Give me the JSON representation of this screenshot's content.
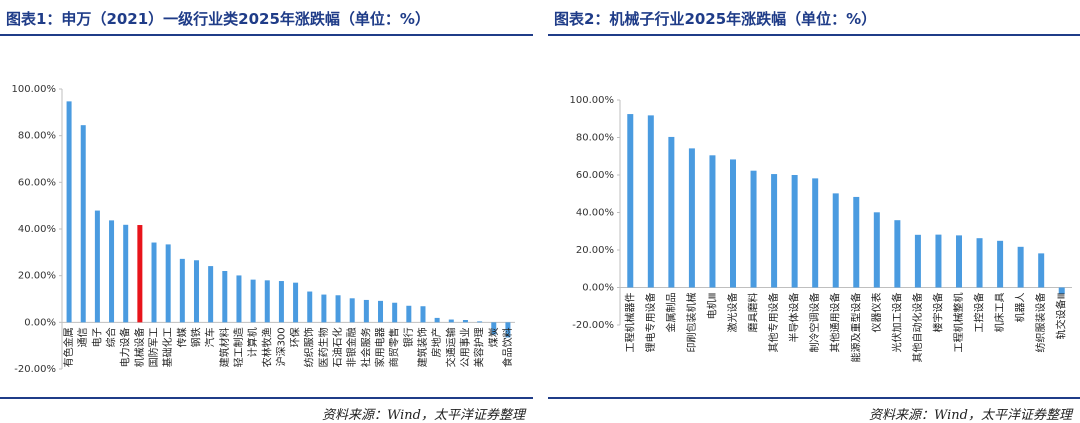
{
  "left": {
    "title": "图表1：申万（2021）一级行业类2025年涨跌幅（单位：%）",
    "source": "资料来源：Wind，太平洋证券整理"
  },
  "right": {
    "title": "图表2：机械子行业2025年涨跌幅（单位：%）",
    "source": "资料来源：Wind，太平洋证券整理"
  },
  "colors": {
    "bar": "#4a9be0",
    "highlight": "#e8141b",
    "axis": "#bfbfbf",
    "title": "#1f3c88"
  },
  "chart_data": [
    {
      "type": "bar",
      "title": "申万（2021）一级行业类2025年涨跌幅（单位：%）",
      "ylim": [
        -20,
        100
      ],
      "yticks": [
        "-20.00%",
        "0.00%",
        "20.00%",
        "40.00%",
        "60.00%",
        "80.00%",
        "100.00%"
      ],
      "highlight": "机械设备",
      "categories": [
        "有色金属",
        "通信",
        "电子",
        "综合",
        "电力设备",
        "机械设备",
        "国防军工",
        "基础化工",
        "传媒",
        "钢铁",
        "汽车",
        "建筑材料",
        "轻工制造",
        "计算机",
        "农林牧渔",
        "沪深300",
        "环保",
        "纺织服饰",
        "医药生物",
        "石油石化",
        "非银金融",
        "社会服务",
        "家用电器",
        "商贸零售",
        "银行",
        "建筑装饰",
        "房地产",
        "交通运输",
        "公用事业",
        "美容护理",
        "煤炭",
        "食品饮料"
      ],
      "values": [
        94.7,
        84.5,
        47.9,
        43.7,
        41.8,
        41.7,
        34.2,
        33.4,
        27.2,
        26.6,
        24.1,
        22.0,
        20.1,
        18.3,
        18.0,
        17.7,
        17.0,
        13.2,
        11.9,
        11.6,
        10.3,
        9.6,
        9.2,
        8.4,
        7.1,
        6.9,
        1.9,
        1.2,
        1.0,
        0.4,
        -5.2,
        -6.5
      ]
    },
    {
      "type": "bar",
      "title": "机械子行业2025年涨跌幅（单位：%）",
      "ylim": [
        -20,
        100
      ],
      "yticks": [
        "-20.00%",
        "0.00%",
        "20.00%",
        "40.00%",
        "60.00%",
        "80.00%",
        "100.00%"
      ],
      "categories": [
        "工程机械器件",
        "锂电专用设备",
        "金属制品",
        "印刷包装机械",
        "电机Ⅲ",
        "激光设备",
        "磨具磨料",
        "其他专用设备",
        "半导体设备",
        "制冷空调设备",
        "其他通用设备",
        "能源及重型设备",
        "仪器仪表",
        "光伏加工设备",
        "其他自动化设备",
        "楼宇设备",
        "工程机械整机",
        "工控设备",
        "机床工具",
        "机器人",
        "纺织服装设备",
        "轨交设备Ⅲ"
      ],
      "values": [
        92.5,
        91.8,
        80.3,
        74.2,
        70.5,
        68.3,
        62.3,
        60.5,
        60.0,
        58.2,
        50.2,
        48.3,
        40.1,
        35.9,
        28.1,
        28.2,
        27.8,
        26.3,
        24.9,
        21.7,
        18.2,
        -3.5
      ]
    }
  ]
}
